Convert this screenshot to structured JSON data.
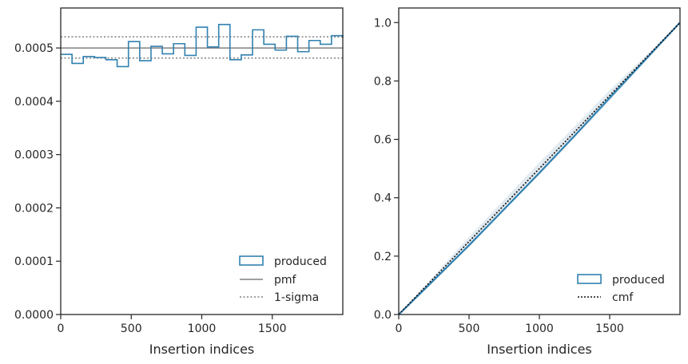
{
  "chart_data": [
    {
      "type": "step",
      "xlabel": "Insertion indices",
      "ylabel": "",
      "xlim": [
        0,
        2000
      ],
      "ylim": [
        0,
        0.000575
      ],
      "xticks": [
        0,
        500,
        1000,
        1500
      ],
      "xtick_labels": [
        "0",
        "500",
        "1000",
        "1500"
      ],
      "yticks": [
        0,
        0.0001,
        0.0002,
        0.0003,
        0.0004,
        0.0005
      ],
      "ytick_labels": [
        "0.0000",
        "0.0001",
        "0.0002",
        "0.0003",
        "0.0004",
        "0.0005"
      ],
      "bin_edges": [
        0,
        80,
        160,
        240,
        320,
        400,
        480,
        560,
        640,
        720,
        800,
        880,
        960,
        1040,
        1120,
        1200,
        1280,
        1360,
        1440,
        1520,
        1600,
        1680,
        1760,
        1840,
        1920,
        2000
      ],
      "produced": [
        0.000488,
        0.000471,
        0.000484,
        0.000482,
        0.000478,
        0.000465,
        0.000512,
        0.000476,
        0.000503,
        0.000489,
        0.000508,
        0.000486,
        0.000539,
        0.000502,
        0.000544,
        0.000478,
        0.000487,
        0.000534,
        0.000507,
        0.000496,
        0.000522,
        0.000493,
        0.000514,
        0.000507,
        0.000523,
        0.000519
      ],
      "pmf": 0.0005,
      "sigma_band": [
        0.000481,
        0.000521
      ],
      "legend": {
        "position": "lower right",
        "entries": [
          "produced",
          "pmf",
          "1-sigma"
        ]
      },
      "colors": {
        "produced": "#3181b0",
        "pmf": "#808080",
        "sigma": "#808080"
      }
    },
    {
      "type": "line",
      "xlabel": "Insertion indices",
      "ylabel": "",
      "xlim": [
        0,
        2000
      ],
      "ylim": [
        0,
        1.05
      ],
      "xticks": [
        0,
        500,
        1000,
        1500
      ],
      "xtick_labels": [
        "0",
        "500",
        "1000",
        "1500"
      ],
      "yticks": [
        0,
        0.2,
        0.4,
        0.6,
        0.8,
        1.0
      ],
      "ytick_labels": [
        "0.0",
        "0.2",
        "0.4",
        "0.6",
        "0.8",
        "1.0"
      ],
      "produced": {
        "x": [
          0,
          250,
          500,
          750,
          1000,
          1250,
          1500,
          1750,
          2000
        ],
        "y": [
          0,
          0.118,
          0.237,
          0.361,
          0.485,
          0.612,
          0.742,
          0.871,
          1.0
        ]
      },
      "cmf": {
        "x": [
          0,
          2000
        ],
        "y": [
          0,
          1.0
        ]
      },
      "band_upper": {
        "x": [
          0,
          500,
          1000,
          1500,
          2000
        ],
        "y": [
          0,
          0.266,
          0.521,
          0.768,
          1.0
        ]
      },
      "band_lower": {
        "x": [
          0,
          500,
          1000,
          1500,
          2000
        ],
        "y": [
          0,
          0.234,
          0.479,
          0.732,
          1.0
        ]
      },
      "legend": {
        "position": "lower right",
        "entries": [
          "produced",
          "cmf"
        ]
      },
      "colors": {
        "produced": "#3181b0",
        "cmf": "#111111",
        "band": "#cfdde7"
      }
    }
  ]
}
